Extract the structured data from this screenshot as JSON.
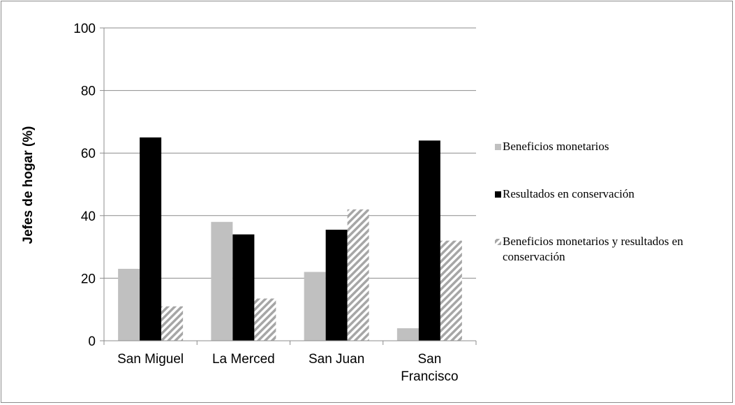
{
  "chart_data": {
    "type": "bar",
    "title": "",
    "xlabel": "",
    "ylabel": "Jefes de hogar (%)",
    "categories": [
      "San Miguel",
      "La Merced",
      "San Juan",
      "San Francisco"
    ],
    "series": [
      {
        "name": "Beneficios monetarios",
        "values": [
          23,
          38,
          22,
          4
        ],
        "color": "#c0c0c0",
        "pattern": "solid"
      },
      {
        "name": "Resultados en conservación",
        "values": [
          65,
          34,
          35.5,
          64
        ],
        "color": "#000000",
        "pattern": "solid"
      },
      {
        "name": "Beneficios monetarios y resultados en conservación",
        "values": [
          11,
          13.5,
          42,
          32
        ],
        "color": "#a6a6a6",
        "pattern": "diagonal-stripes"
      }
    ],
    "ylim": [
      0,
      100
    ],
    "yticks": [
      0,
      20,
      40,
      60,
      80,
      100
    ],
    "grid": true,
    "legend_position": "right"
  }
}
